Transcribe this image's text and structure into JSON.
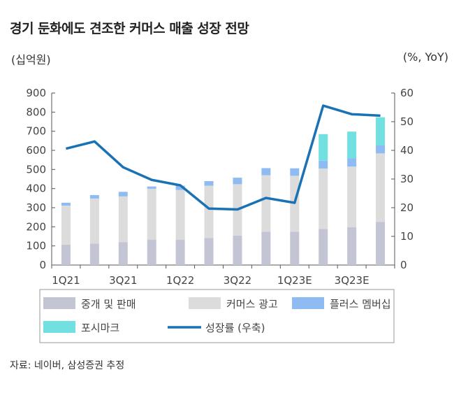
{
  "title": "경기 둔화에도 견조한 커머스 매출 성장 전망",
  "source": "자료: 네이버, 삼성증권 추정",
  "chart_data": {
    "type": "bar",
    "stacked": true,
    "title": "경기 둔화에도 견조한 커머스 매출 성장 전망",
    "ylabel": "(십억원)",
    "y2label": "(%, YoY)",
    "ylim": [
      0,
      900
    ],
    "y2lim": [
      0,
      60
    ],
    "yticks": [
      0,
      100,
      200,
      300,
      400,
      500,
      600,
      700,
      800,
      900
    ],
    "y2ticks": [
      0,
      10,
      20,
      30,
      40,
      50,
      60
    ],
    "categories": [
      "1Q21",
      "2Q21",
      "3Q21",
      "4Q21",
      "1Q22",
      "2Q22",
      "3Q22",
      "4Q22",
      "1Q23E",
      "2Q23E",
      "3Q23E",
      "4Q23E"
    ],
    "xtick_labels": [
      "1Q21",
      "3Q21",
      "1Q22",
      "3Q22",
      "1Q23E",
      "3Q23E"
    ],
    "grid": false,
    "legend_position": "bottom",
    "series": [
      {
        "name": "중개 및 판매",
        "type": "bar",
        "axis": "left",
        "color": "#c3c4d4",
        "values": [
          107,
          112,
          119,
          133,
          133,
          141,
          154,
          174,
          174,
          189,
          198,
          225
        ]
      },
      {
        "name": "커머스 광고",
        "type": "bar",
        "axis": "left",
        "color": "#dcdcdc",
        "values": [
          204,
          236,
          240,
          266,
          260,
          274,
          269,
          296,
          293,
          316,
          317,
          359
        ]
      },
      {
        "name": "플러스 멤버십",
        "type": "bar",
        "axis": "left",
        "color": "#8ebcf2",
        "values": [
          15,
          18,
          24,
          12,
          22,
          24,
          34,
          37,
          39,
          41,
          43,
          43
        ]
      },
      {
        "name": "포시마크",
        "type": "bar",
        "axis": "left",
        "color": "#72e0e0",
        "values": [
          0,
          0,
          0,
          0,
          0,
          0,
          0,
          0,
          0,
          139,
          140,
          146
        ]
      },
      {
        "name": "성장률 (우축)",
        "type": "line",
        "axis": "right",
        "color": "#1a72b4",
        "values": [
          40.6,
          43.1,
          34.1,
          29.7,
          27.8,
          19.7,
          19.4,
          23.4,
          21.7,
          55.6,
          52.6,
          52.1
        ]
      }
    ]
  }
}
